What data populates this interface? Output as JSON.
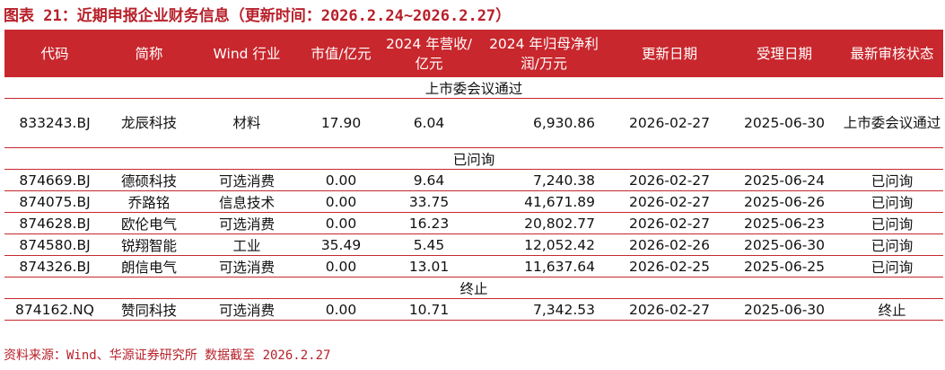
{
  "title": "图表 21：近期申报企业财务信息（更新时间：2026.2.24~2026.2.27）",
  "headers": [
    "代码",
    "简称",
    "Wind 行业",
    "市值/亿元",
    "2024 年营收/亿元",
    "2024 年归母净利润/万元",
    "更新日期",
    "受理日期",
    "最新审核状态"
  ],
  "sections": [
    {
      "label": "上市委会议通过",
      "rows": [
        [
          "833243.BJ",
          "龙辰科技",
          "材料",
          "17.90",
          "6.04",
          "6,930.86",
          "2026-02-27",
          "2025-06-30",
          "上市委会议通过"
        ]
      ]
    },
    {
      "label": "已问询",
      "rows": [
        [
          "874669.BJ",
          "德硕科技",
          "可选消费",
          "0.00",
          "9.64",
          "7,240.38",
          "2026-02-27",
          "2025-06-24",
          "已问询"
        ],
        [
          "874075.BJ",
          "乔路铭",
          "信息技术",
          "0.00",
          "33.75",
          "41,671.89",
          "2026-02-27",
          "2025-06-26",
          "已问询"
        ],
        [
          "874628.BJ",
          "欧伦电气",
          "可选消费",
          "0.00",
          "16.23",
          "20,802.77",
          "2026-02-27",
          "2025-06-23",
          "已问询"
        ],
        [
          "874580.BJ",
          "锐翔智能",
          "工业",
          "35.49",
          "5.45",
          "12,052.42",
          "2026-02-26",
          "2025-06-30",
          "已问询"
        ],
        [
          "874326.BJ",
          "朗信电气",
          "可选消费",
          "0.00",
          "13.01",
          "11,637.64",
          "2026-02-25",
          "2025-06-25",
          "已问询"
        ]
      ]
    },
    {
      "label": "终止",
      "rows": [
        [
          "874162.NQ",
          "赞同科技",
          "可选消费",
          "0.00",
          "10.71",
          "7,342.53",
          "2026-02-27",
          "2025-06-30",
          "终止"
        ]
      ]
    }
  ],
  "source": "资料来源：Wind、华源证券研究所 数据截至 2026.2.27",
  "colors": {
    "accent": "#c8272d",
    "title": "#b8202a"
  }
}
